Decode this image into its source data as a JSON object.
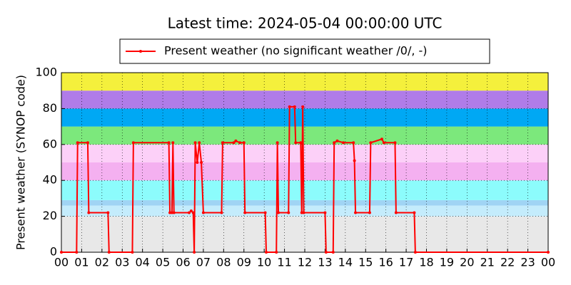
{
  "chart_data": {
    "type": "line",
    "title": "Latest time: 2024-05-04 00:00:00 UTC",
    "y_label": "Present weather (SYNOP code)",
    "x": [
      0,
      0.75,
      0.8,
      1.3,
      1.35,
      2.3,
      2.35,
      3.5,
      3.55,
      5.3,
      5.35,
      5.45,
      5.5,
      5.55,
      6.3,
      6.4,
      6.5,
      6.55,
      6.6,
      6.7,
      6.8,
      6.9,
      7.0,
      7.9,
      7.95,
      8.5,
      8.6,
      8.8,
      9.0,
      9.05,
      10.05,
      10.1,
      10.6,
      10.65,
      10.7,
      11.2,
      11.25,
      11.5,
      11.55,
      11.8,
      11.85,
      11.9,
      11.95,
      13.0,
      13.05,
      13.4,
      13.45,
      13.6,
      13.9,
      14.4,
      14.45,
      14.5,
      15.2,
      15.25,
      15.8,
      15.9,
      16.45,
      16.5,
      17.4,
      17.45,
      24
    ],
    "series": [
      {
        "name": "Present weather (no significant weather /0/, -)",
        "color": "#ff0000",
        "values": [
          0,
          0,
          61,
          61,
          22,
          22,
          0,
          0,
          61,
          61,
          22,
          22,
          61,
          22,
          22,
          23,
          22,
          0,
          61,
          50,
          61,
          50,
          22,
          22,
          61,
          61,
          62,
          61,
          61,
          22,
          22,
          0,
          0,
          61,
          22,
          22,
          81,
          81,
          61,
          61,
          22,
          81,
          22,
          22,
          0,
          0,
          61,
          62,
          61,
          61,
          51,
          22,
          22,
          61,
          63,
          61,
          61,
          22,
          22,
          0,
          0
        ]
      }
    ],
    "xlim": [
      0,
      24
    ],
    "xticks": [
      {
        "value": 0,
        "label": "00"
      },
      {
        "value": 1,
        "label": "01"
      },
      {
        "value": 2,
        "label": "02"
      },
      {
        "value": 3,
        "label": "03"
      },
      {
        "value": 4,
        "label": "04"
      },
      {
        "value": 5,
        "label": "05"
      },
      {
        "value": 6,
        "label": "06"
      },
      {
        "value": 7,
        "label": "07"
      },
      {
        "value": 8,
        "label": "08"
      },
      {
        "value": 9,
        "label": "09"
      },
      {
        "value": 10,
        "label": "10"
      },
      {
        "value": 11,
        "label": "11"
      },
      {
        "value": 12,
        "label": "12"
      },
      {
        "value": 13,
        "label": "13"
      },
      {
        "value": 14,
        "label": "14"
      },
      {
        "value": 15,
        "label": "15"
      },
      {
        "value": 16,
        "label": "16"
      },
      {
        "value": 17,
        "label": "17"
      },
      {
        "value": 18,
        "label": "18"
      },
      {
        "value": 19,
        "label": "19"
      },
      {
        "value": 20,
        "label": "20"
      },
      {
        "value": 21,
        "label": "21"
      },
      {
        "value": 22,
        "label": "22"
      },
      {
        "value": 23,
        "label": "23"
      },
      {
        "value": 24,
        "label": "00"
      }
    ],
    "ylim": [
      0,
      100
    ],
    "yticks": [
      0,
      20,
      40,
      60,
      80,
      100
    ],
    "grid": true,
    "bands": [
      {
        "from": 0,
        "to": 20,
        "color": "#e8e8e8"
      },
      {
        "from": 20,
        "to": 26,
        "color": "#c4ecfc"
      },
      {
        "from": 26,
        "to": 29,
        "color": "#a0d4f4"
      },
      {
        "from": 29,
        "to": 40,
        "color": "#8cfcfc"
      },
      {
        "from": 40,
        "to": 50,
        "color": "#f4b0f0"
      },
      {
        "from": 50,
        "to": 60,
        "color": "#fcd0f8"
      },
      {
        "from": 60,
        "to": 70,
        "color": "#7ce87c"
      },
      {
        "from": 70,
        "to": 80,
        "color": "#00a8f4"
      },
      {
        "from": 80,
        "to": 90,
        "color": "#b07ce8"
      },
      {
        "from": 90,
        "to": 100,
        "color": "#f4f03c"
      }
    ]
  }
}
